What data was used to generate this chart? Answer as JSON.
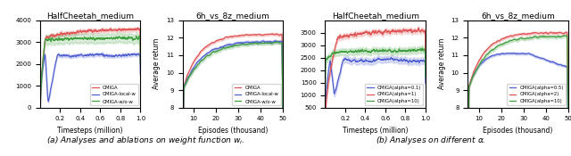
{
  "fig_width": 6.4,
  "fig_height": 1.75,
  "dpi": 100,
  "subtitle_a": "(a) Analyses and ablations on weight function $w_i$.",
  "subtitle_b": "(b) Analyses on different $\\alpha$.",
  "plot1": {
    "title": "HalfCheetah_medium",
    "xlabel": "Timesteps (million)",
    "ylabel": "",
    "xlim": [
      0,
      1.0
    ],
    "ylim": [
      0,
      4000
    ],
    "yticks": [
      0,
      1000,
      2000,
      3000,
      4000
    ],
    "xticks": [
      0.2,
      0.4,
      0.6,
      0.8,
      1.0
    ]
  },
  "plot2": {
    "title": "6h_vs_8z_medium",
    "xlabel": "Episodes (thousand)",
    "ylabel": "Average return",
    "xlim": [
      5,
      50
    ],
    "ylim": [
      8,
      13
    ],
    "yticks": [
      8,
      9,
      10,
      11,
      12,
      13
    ],
    "xticks": [
      10,
      20,
      30,
      40,
      50
    ]
  },
  "plot3": {
    "title": "HalfCheetah_medium",
    "xlabel": "Timesteps (million)",
    "ylabel": "",
    "xlim": [
      0,
      1.0
    ],
    "ylim": [
      500,
      4000
    ],
    "yticks": [
      500,
      1000,
      1500,
      2000,
      2500,
      3000,
      3500
    ],
    "xticks": [
      0.2,
      0.4,
      0.6,
      0.8,
      1.0
    ]
  },
  "plot4": {
    "title": "6h_vs_8z_medium",
    "xlabel": "Episodes (thousand)",
    "ylabel": "Average return",
    "xlim": [
      5,
      50
    ],
    "ylim": [
      8,
      13
    ],
    "yticks": [
      8,
      9,
      10,
      11,
      12,
      13
    ],
    "xticks": [
      10,
      20,
      30,
      40,
      50
    ]
  },
  "colors": {
    "red": "#e05555",
    "blue": "#5060d0",
    "green": "#40a040"
  }
}
